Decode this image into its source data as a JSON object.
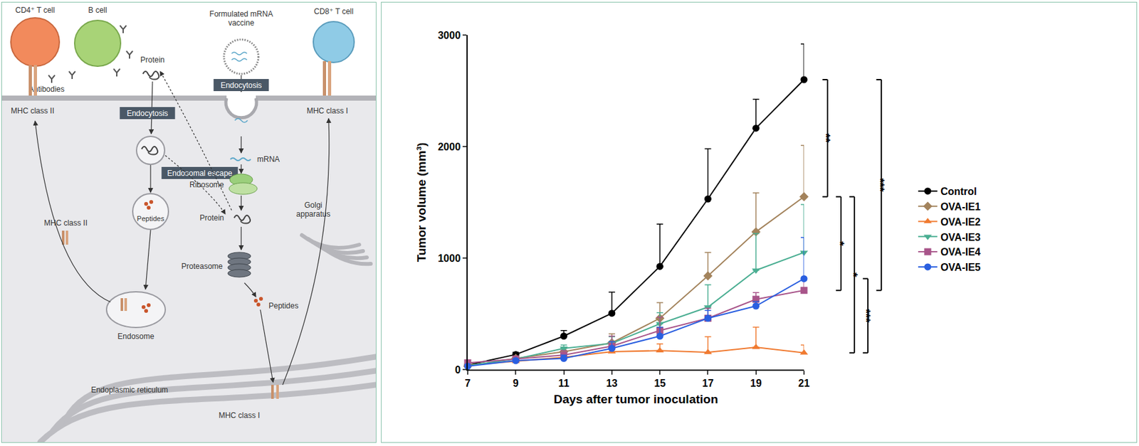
{
  "diagram": {
    "labels": {
      "cd4": "CD4⁺ T cell",
      "bcell": "B cell",
      "vaccine": "Formulated mRNA vaccine",
      "cd8": "CD8⁺ T cell",
      "antibodies": "Antibodies",
      "protein_out": "Protein",
      "mhc2_top": "MHC class II",
      "mhc1_top": "MHC class I",
      "endocytosis_left": "Endocytosis",
      "endocytosis_right": "Endocytosis",
      "mrna": "mRNA",
      "ribosome": "Ribosome",
      "endosomal_escape": "Endosomal escape",
      "protein_in": "Protein",
      "peptides_left": "Peptides",
      "proteasome": "Proteasome",
      "golgi": "Golgi apparatus",
      "mhc2_low": "MHC class II",
      "endosome": "Endosome",
      "peptides_right": "Peptides",
      "er": "Endoplasmic reticulum",
      "mhc1_low": "MHC class I"
    }
  },
  "chart_data": {
    "type": "line",
    "x_label": "Days after tumor inoculation",
    "y_label": "Tumor volume (mm³)",
    "x": [
      7,
      9,
      11,
      13,
      15,
      17,
      19,
      21
    ],
    "xlim": [
      7,
      21
    ],
    "xticks": [
      7,
      9,
      11,
      13,
      15,
      17,
      19,
      21
    ],
    "ylim": [
      0,
      3000
    ],
    "yticks": [
      0,
      1000,
      2000,
      3000
    ],
    "grid": false,
    "legend": "right",
    "series": [
      {
        "name": "Control",
        "color": "#000000",
        "marker": "circle",
        "values": [
          40,
          135,
          300,
          505,
          925,
          1530,
          2165,
          2600
        ],
        "errors": [
          10,
          20,
          50,
          190,
          380,
          450,
          260,
          320
        ]
      },
      {
        "name": "OVA-IE1",
        "color": "#a3835c",
        "marker": "diamond",
        "values": [
          30,
          100,
          160,
          240,
          460,
          840,
          1235,
          1550
        ],
        "errors": [
          10,
          20,
          30,
          80,
          140,
          210,
          350,
          460
        ]
      },
      {
        "name": "OVA-IE2",
        "color": "#f07a30",
        "marker": "triangle-up",
        "values": [
          40,
          75,
          110,
          160,
          170,
          155,
          200,
          150
        ],
        "errors": [
          10,
          15,
          30,
          40,
          60,
          140,
          180,
          70
        ]
      },
      {
        "name": "OVA-IE3",
        "color": "#4aae92",
        "marker": "triangle-down",
        "values": [
          35,
          95,
          190,
          235,
          410,
          560,
          890,
          1050
        ],
        "errors": [
          10,
          20,
          30,
          60,
          100,
          200,
          330,
          430
        ]
      },
      {
        "name": "OVA-IE4",
        "color": "#a8558a",
        "marker": "square",
        "values": [
          60,
          95,
          130,
          210,
          350,
          460,
          630,
          710
        ],
        "errors": [
          10,
          20,
          40,
          90,
          120,
          90,
          60,
          100
        ]
      },
      {
        "name": "OVA-IE5",
        "color": "#2a5fe0",
        "marker": "circle",
        "values": [
          30,
          80,
          100,
          190,
          300,
          460,
          570,
          815
        ],
        "errors": [
          10,
          15,
          30,
          60,
          80,
          70,
          40,
          370
        ]
      }
    ],
    "significance": [
      {
        "from": "Control",
        "to": "OVA-IE1",
        "label": "**"
      },
      {
        "from": "OVA-IE1",
        "to": "OVA-IE4",
        "label": "*"
      },
      {
        "from": "OVA-IE1",
        "to": "OVA-IE2",
        "label": "*"
      },
      {
        "from": "OVA-IE5",
        "to": "OVA-IE2",
        "label": "***"
      },
      {
        "from": "Control",
        "to": "OVA-IE4",
        "label": "***"
      }
    ]
  }
}
